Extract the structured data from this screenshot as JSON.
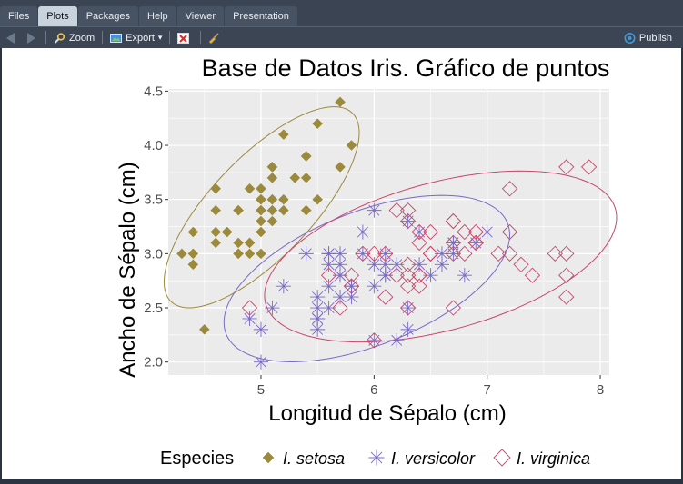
{
  "tabs": [
    {
      "label": "Files"
    },
    {
      "label": "Plots"
    },
    {
      "label": "Packages"
    },
    {
      "label": "Help"
    },
    {
      "label": "Viewer"
    },
    {
      "label": "Presentation"
    }
  ],
  "toolbar": {
    "zoom_label": "Zoom",
    "export_label": "Export",
    "export_caret": "▾",
    "publish_label": "Publish"
  },
  "colors": {
    "setosa": "#9B8A3C",
    "versicolor": "#7B68C8",
    "virginica": "#C8476B",
    "panel": "#EBEBEB",
    "grid": "#FFFFFF"
  },
  "chart_data": {
    "type": "scatter",
    "title": "Base de Datos Iris. Gráfico de puntos",
    "xlabel": "Longitud de Sépalo (cm)",
    "ylabel": "Ancho de Sépalo (cm)",
    "xlim": [
      4.18,
      8.08
    ],
    "ylim": [
      1.88,
      4.52
    ],
    "xticks": [
      5,
      6,
      7,
      8
    ],
    "xtick_labels": [
      "5",
      "6",
      "7",
      "8"
    ],
    "yticks": [
      2.0,
      2.5,
      3.0,
      3.5,
      4.0,
      4.5
    ],
    "ytick_labels": [
      "2.0",
      "2.5",
      "3.0",
      "3.5",
      "4.0",
      "4.5"
    ],
    "grid": true,
    "legend_title": "Especies",
    "legend_position": "bottom",
    "ellipses": true,
    "series": [
      {
        "name": "I. setosa",
        "marker": "diamond-filled",
        "points": [
          [
            5.1,
            3.5
          ],
          [
            4.9,
            3.0
          ],
          [
            4.7,
            3.2
          ],
          [
            4.6,
            3.1
          ],
          [
            5.0,
            3.6
          ],
          [
            5.4,
            3.9
          ],
          [
            4.6,
            3.4
          ],
          [
            5.0,
            3.4
          ],
          [
            4.4,
            2.9
          ],
          [
            4.9,
            3.1
          ],
          [
            5.4,
            3.7
          ],
          [
            4.8,
            3.4
          ],
          [
            4.8,
            3.0
          ],
          [
            4.3,
            3.0
          ],
          [
            5.8,
            4.0
          ],
          [
            5.7,
            4.4
          ],
          [
            5.4,
            3.9
          ],
          [
            5.1,
            3.5
          ],
          [
            5.7,
            3.8
          ],
          [
            5.1,
            3.8
          ],
          [
            5.4,
            3.4
          ],
          [
            5.1,
            3.7
          ],
          [
            4.6,
            3.6
          ],
          [
            5.1,
            3.3
          ],
          [
            4.8,
            3.4
          ],
          [
            5.0,
            3.0
          ],
          [
            5.0,
            3.4
          ],
          [
            5.2,
            3.5
          ],
          [
            5.2,
            3.4
          ],
          [
            4.7,
            3.2
          ],
          [
            4.8,
            3.1
          ],
          [
            5.4,
            3.4
          ],
          [
            5.2,
            4.1
          ],
          [
            5.5,
            4.2
          ],
          [
            4.9,
            3.1
          ],
          [
            5.0,
            3.2
          ],
          [
            5.5,
            3.5
          ],
          [
            4.9,
            3.6
          ],
          [
            4.4,
            3.0
          ],
          [
            5.1,
            3.4
          ],
          [
            5.0,
            3.5
          ],
          [
            4.5,
            2.3
          ],
          [
            4.4,
            3.2
          ],
          [
            5.0,
            3.5
          ],
          [
            5.1,
            3.8
          ],
          [
            4.8,
            3.0
          ],
          [
            5.1,
            3.8
          ],
          [
            4.6,
            3.2
          ],
          [
            5.3,
            3.7
          ],
          [
            5.0,
            3.3
          ]
        ]
      },
      {
        "name": "I. versicolor",
        "marker": "asterisk",
        "points": [
          [
            7.0,
            3.2
          ],
          [
            6.4,
            3.2
          ],
          [
            6.9,
            3.1
          ],
          [
            5.5,
            2.3
          ],
          [
            6.5,
            2.8
          ],
          [
            5.7,
            2.8
          ],
          [
            6.3,
            3.3
          ],
          [
            4.9,
            2.4
          ],
          [
            6.6,
            2.9
          ],
          [
            5.2,
            2.7
          ],
          [
            5.0,
            2.0
          ],
          [
            5.9,
            3.0
          ],
          [
            6.0,
            2.2
          ],
          [
            6.1,
            2.9
          ],
          [
            5.6,
            2.9
          ],
          [
            6.7,
            3.1
          ],
          [
            5.6,
            3.0
          ],
          [
            5.8,
            2.7
          ],
          [
            6.2,
            2.2
          ],
          [
            5.6,
            2.5
          ],
          [
            5.9,
            3.2
          ],
          [
            6.1,
            2.8
          ],
          [
            6.3,
            2.5
          ],
          [
            6.1,
            2.8
          ],
          [
            6.4,
            2.9
          ],
          [
            6.6,
            3.0
          ],
          [
            6.8,
            2.8
          ],
          [
            6.7,
            3.0
          ],
          [
            6.0,
            2.9
          ],
          [
            5.7,
            2.6
          ],
          [
            5.5,
            2.4
          ],
          [
            5.5,
            2.4
          ],
          [
            5.8,
            2.7
          ],
          [
            6.0,
            2.7
          ],
          [
            5.4,
            3.0
          ],
          [
            6.0,
            3.4
          ],
          [
            6.7,
            3.1
          ],
          [
            6.3,
            2.3
          ],
          [
            5.6,
            3.0
          ],
          [
            5.5,
            2.5
          ],
          [
            5.5,
            2.6
          ],
          [
            6.1,
            3.0
          ],
          [
            5.8,
            2.6
          ],
          [
            5.0,
            2.3
          ],
          [
            5.6,
            2.7
          ],
          [
            5.7,
            3.0
          ],
          [
            5.7,
            2.9
          ],
          [
            6.2,
            2.9
          ],
          [
            5.1,
            2.5
          ],
          [
            5.7,
            2.8
          ]
        ]
      },
      {
        "name": "I. virginica",
        "marker": "diamond-open",
        "points": [
          [
            6.3,
            3.3
          ],
          [
            5.8,
            2.7
          ],
          [
            7.1,
            3.0
          ],
          [
            6.3,
            2.9
          ],
          [
            6.5,
            3.0
          ],
          [
            7.6,
            3.0
          ],
          [
            4.9,
            2.5
          ],
          [
            7.3,
            2.9
          ],
          [
            6.7,
            2.5
          ],
          [
            7.2,
            3.6
          ],
          [
            6.5,
            3.2
          ],
          [
            6.4,
            2.7
          ],
          [
            6.8,
            3.0
          ],
          [
            5.7,
            2.5
          ],
          [
            5.8,
            2.8
          ],
          [
            6.4,
            3.2
          ],
          [
            6.5,
            3.0
          ],
          [
            7.7,
            3.8
          ],
          [
            7.7,
            2.6
          ],
          [
            6.0,
            2.2
          ],
          [
            6.9,
            3.2
          ],
          [
            5.6,
            2.8
          ],
          [
            7.7,
            2.8
          ],
          [
            6.3,
            2.7
          ],
          [
            6.7,
            3.3
          ],
          [
            7.2,
            3.2
          ],
          [
            6.2,
            2.8
          ],
          [
            6.1,
            3.0
          ],
          [
            6.4,
            2.8
          ],
          [
            7.2,
            3.0
          ],
          [
            7.4,
            2.8
          ],
          [
            7.9,
            3.8
          ],
          [
            6.4,
            2.8
          ],
          [
            6.3,
            2.8
          ],
          [
            6.1,
            2.6
          ],
          [
            7.7,
            3.0
          ],
          [
            6.3,
            3.4
          ],
          [
            6.4,
            3.1
          ],
          [
            6.0,
            3.0
          ],
          [
            6.9,
            3.1
          ],
          [
            6.7,
            3.1
          ],
          [
            6.9,
            3.1
          ],
          [
            5.8,
            2.7
          ],
          [
            6.8,
            3.2
          ],
          [
            6.7,
            3.3
          ],
          [
            6.7,
            3.0
          ],
          [
            6.3,
            2.5
          ],
          [
            6.5,
            3.0
          ],
          [
            6.2,
            3.4
          ],
          [
            5.9,
            3.0
          ]
        ]
      }
    ]
  }
}
